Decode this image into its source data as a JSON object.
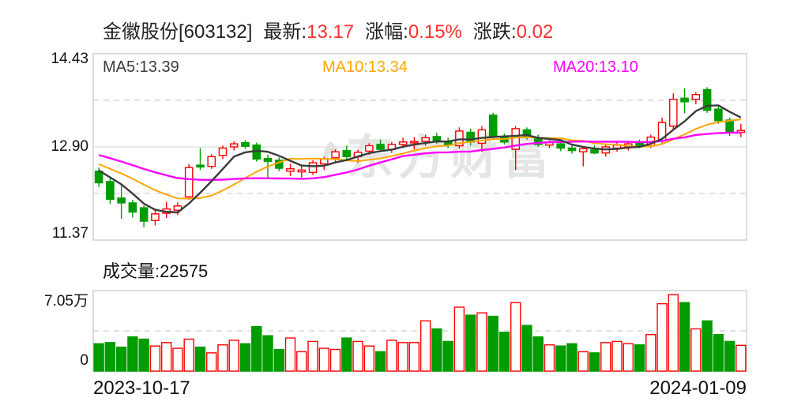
{
  "header": {
    "title": "金徽股份[603132]",
    "latest_label": "最新:",
    "latest_value": "13.17",
    "pct_label": "涨幅:",
    "pct_value": "0.15%",
    "chg_label": "涨跌:",
    "chg_value": "0.02"
  },
  "ma_labels": {
    "ma5": "MA5:13.39",
    "ma10": "MA10:13.34",
    "ma20": "MA20:13.10"
  },
  "price_axis_labels": {
    "top": "14.43",
    "mid": "12.90",
    "bottom": "11.37"
  },
  "volume_title": "成交量:22575",
  "volume_axis_labels": {
    "top": "7.05万",
    "bottom": "0"
  },
  "x_axis_labels": {
    "start": "2023-10-17",
    "end": "2024-01-09"
  },
  "watermark_text": "东方财富",
  "colors": {
    "up": "#ff0000",
    "down": "#009c00",
    "ma5": "#3c3c3c",
    "ma10": "#ffa600",
    "ma20": "#ff00ff",
    "value_red": "#fb2f2f",
    "border": "#cccccc",
    "grid_dashed": "#d8d8d8",
    "grid_solid": "#e2e2e2"
  },
  "chart_data": {
    "type": "candlestick_with_volume",
    "title": "金徽股份[603132] 日K",
    "date_range": [
      "2023-10-17",
      "2024-01-09"
    ],
    "last": {
      "close": 13.17,
      "change_pct": "0.15%",
      "change": 0.02,
      "volume_hands": 22575
    },
    "ma_values": {
      "ma5": 13.39,
      "ma10": 13.34,
      "ma20": 13.1
    },
    "price_axis": {
      "max": 14.43,
      "mid": 12.9,
      "min": 11.37,
      "dashed_grid": [
        13.665,
        12.135
      ]
    },
    "volume_axis": {
      "max_wan": 7.05,
      "mid_dashed_wan": 3.525,
      "min": 0
    },
    "legend": [
      "MA5",
      "MA10",
      "MA20"
    ],
    "pre_closes": [
      13.05,
      13.1,
      13.0,
      12.95,
      12.9,
      12.85,
      12.9,
      12.85,
      12.8,
      12.75,
      12.8,
      12.75,
      12.7,
      12.65,
      12.7,
      12.6,
      12.55,
      12.6,
      12.5
    ],
    "candles_format": [
      "open",
      "high",
      "low",
      "close",
      "volume_wan"
    ],
    "candles": [
      [
        12.5,
        12.56,
        12.24,
        12.31,
        2.4
      ],
      [
        12.33,
        12.38,
        11.96,
        12.04,
        2.5
      ],
      [
        12.06,
        12.28,
        11.72,
        11.98,
        2.1
      ],
      [
        11.98,
        12.03,
        11.74,
        11.83,
        3.0
      ],
      [
        11.9,
        11.94,
        11.58,
        11.68,
        2.8
      ],
      [
        11.69,
        11.89,
        11.61,
        11.8,
        2.2
      ],
      [
        11.81,
        12.0,
        11.73,
        11.88,
        2.5
      ],
      [
        11.86,
        11.99,
        11.78,
        11.93,
        2.0
      ],
      [
        12.08,
        12.62,
        12.03,
        12.56,
        2.8
      ],
      [
        12.6,
        12.88,
        12.52,
        12.57,
        2.1
      ],
      [
        12.58,
        12.78,
        12.54,
        12.74,
        1.6
      ],
      [
        12.76,
        12.92,
        12.7,
        12.88,
        2.3
      ],
      [
        12.9,
        12.99,
        12.84,
        12.95,
        2.7
      ],
      [
        12.97,
        13.01,
        12.87,
        12.91,
        2.4
      ],
      [
        12.93,
        12.97,
        12.66,
        12.7,
        3.9
      ],
      [
        12.71,
        12.77,
        12.38,
        12.66,
        3.1
      ],
      [
        12.68,
        12.73,
        12.5,
        12.55,
        1.9
      ],
      [
        12.5,
        12.62,
        12.42,
        12.54,
        2.9
      ],
      [
        12.49,
        12.6,
        12.4,
        12.52,
        1.7
      ],
      [
        12.48,
        12.68,
        12.44,
        12.64,
        2.6
      ],
      [
        12.62,
        12.74,
        12.52,
        12.7,
        2.0
      ],
      [
        12.72,
        12.86,
        12.66,
        12.82,
        1.9
      ],
      [
        12.84,
        12.92,
        12.7,
        12.74,
        2.9
      ],
      [
        12.74,
        12.85,
        12.64,
        12.81,
        2.6
      ],
      [
        12.83,
        12.96,
        12.77,
        12.92,
        2.2
      ],
      [
        12.94,
        13.02,
        12.82,
        12.86,
        1.7
      ],
      [
        12.86,
        12.98,
        12.8,
        12.94,
        2.7
      ],
      [
        12.94,
        13.05,
        12.88,
        12.98,
        2.5
      ],
      [
        12.97,
        13.06,
        12.86,
        12.99,
        2.5
      ],
      [
        12.99,
        13.1,
        12.92,
        13.05,
        4.4
      ],
      [
        13.07,
        13.13,
        12.95,
        12.99,
        3.7
      ],
      [
        12.98,
        13.05,
        12.88,
        12.93,
        2.6
      ],
      [
        12.92,
        13.22,
        12.87,
        13.16,
        5.6
      ],
      [
        13.14,
        13.2,
        12.92,
        12.98,
        4.9
      ],
      [
        12.96,
        13.24,
        12.82,
        13.18,
        5.1
      ],
      [
        13.42,
        13.46,
        13.02,
        13.06,
        4.8
      ],
      [
        13.06,
        13.12,
        12.94,
        12.98,
        3.4
      ],
      [
        12.86,
        13.24,
        12.52,
        13.2,
        6.0
      ],
      [
        13.18,
        13.22,
        13.02,
        13.06,
        4.0
      ],
      [
        13.04,
        13.1,
        12.9,
        12.94,
        3.0
      ],
      [
        12.93,
        13.01,
        12.88,
        12.97,
        2.3
      ],
      [
        12.95,
        13.0,
        12.83,
        12.88,
        2.2
      ],
      [
        12.88,
        12.94,
        12.79,
        12.84,
        2.4
      ],
      [
        12.82,
        12.91,
        12.58,
        12.87,
        1.7
      ],
      [
        12.85,
        12.93,
        12.78,
        12.8,
        1.6
      ],
      [
        12.8,
        12.93,
        12.74,
        12.9,
        2.5
      ],
      [
        12.88,
        12.97,
        12.82,
        12.93,
        2.6
      ],
      [
        12.91,
        12.99,
        12.84,
        12.95,
        2.4
      ],
      [
        12.97,
        13.02,
        12.88,
        12.92,
        2.3
      ],
      [
        12.92,
        13.1,
        12.88,
        13.06,
        3.2
      ],
      [
        13.0,
        13.38,
        12.96,
        13.3,
        5.9
      ],
      [
        13.24,
        13.78,
        13.18,
        13.68,
        6.7
      ],
      [
        13.7,
        13.86,
        13.45,
        13.64,
        6.0
      ],
      [
        13.68,
        13.8,
        13.6,
        13.76,
        3.7
      ],
      [
        13.84,
        13.88,
        13.46,
        13.5,
        4.4
      ],
      [
        13.52,
        13.56,
        13.28,
        13.33,
        3.2
      ],
      [
        13.34,
        13.38,
        13.08,
        13.15,
        2.6
      ],
      [
        13.14,
        13.28,
        13.06,
        13.17,
        2.26
      ]
    ]
  }
}
